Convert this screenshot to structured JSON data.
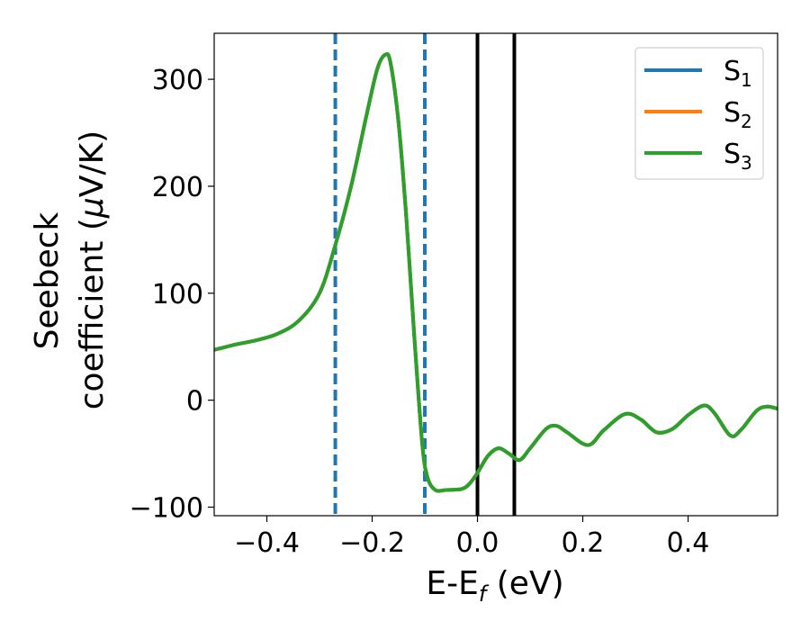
{
  "chart_data": {
    "type": "line",
    "xlabel_main": "E-E",
    "xlabel_sub": "f",
    "xlabel_unit": " (eV)",
    "ylabel_line1": "Seebeck",
    "ylabel_line2_text": "coefficient  (",
    "ylabel_line2_mu": "μ",
    "ylabel_line2_unit": "V/K)",
    "xlim": [
      -0.5,
      0.57
    ],
    "ylim": [
      -108,
      343
    ],
    "xticks": [
      {
        "value": -0.4,
        "label": "−0.4"
      },
      {
        "value": -0.2,
        "label": "−0.2"
      },
      {
        "value": 0.0,
        "label": "0.0"
      },
      {
        "value": 0.2,
        "label": "0.2"
      },
      {
        "value": 0.4,
        "label": "0.4"
      }
    ],
    "yticks": [
      {
        "value": -100,
        "label": "−100"
      },
      {
        "value": 0,
        "label": "0"
      },
      {
        "value": 100,
        "label": "100"
      },
      {
        "value": 200,
        "label": "200"
      },
      {
        "value": 300,
        "label": "300"
      }
    ],
    "legend_position": "top-right",
    "series": [
      {
        "name": "S",
        "subscript": "1",
        "color": "#1f77b4"
      },
      {
        "name": "S",
        "subscript": "2",
        "color": "#ff7f0e"
      },
      {
        "name": "S",
        "subscript": "3",
        "color": "#2ca02c"
      }
    ],
    "curve_points": [
      [
        -0.5,
        47
      ],
      [
        -0.46,
        52
      ],
      [
        -0.42,
        56
      ],
      [
        -0.38,
        62
      ],
      [
        -0.34,
        74
      ],
      [
        -0.3,
        100
      ],
      [
        -0.27,
        145
      ],
      [
        -0.24,
        200
      ],
      [
        -0.21,
        268
      ],
      [
        -0.19,
        310
      ],
      [
        -0.175,
        323
      ],
      [
        -0.165,
        315
      ],
      [
        -0.15,
        260
      ],
      [
        -0.135,
        170
      ],
      [
        -0.12,
        60
      ],
      [
        -0.105,
        -40
      ],
      [
        -0.095,
        -72
      ],
      [
        -0.08,
        -84
      ],
      [
        -0.06,
        -84
      ],
      [
        -0.03,
        -83
      ],
      [
        -0.015,
        -78
      ],
      [
        0.0,
        -68
      ],
      [
        0.02,
        -52
      ],
      [
        0.04,
        -45
      ],
      [
        0.06,
        -50
      ],
      [
        0.08,
        -56
      ],
      [
        0.1,
        -45
      ],
      [
        0.13,
        -27
      ],
      [
        0.15,
        -24
      ],
      [
        0.17,
        -30
      ],
      [
        0.21,
        -42
      ],
      [
        0.24,
        -28
      ],
      [
        0.28,
        -13
      ],
      [
        0.31,
        -18
      ],
      [
        0.34,
        -30
      ],
      [
        0.37,
        -27
      ],
      [
        0.4,
        -14
      ],
      [
        0.43,
        -5
      ],
      [
        0.45,
        -12
      ],
      [
        0.48,
        -33
      ],
      [
        0.5,
        -28
      ],
      [
        0.53,
        -10
      ],
      [
        0.55,
        -6
      ],
      [
        0.57,
        -8
      ]
    ],
    "dashed_vlines": {
      "x": [
        -0.27,
        -0.1
      ],
      "color": "#1f77b4"
    },
    "solid_vlines": {
      "x": [
        0.0,
        0.07
      ],
      "color": "#000000"
    }
  }
}
